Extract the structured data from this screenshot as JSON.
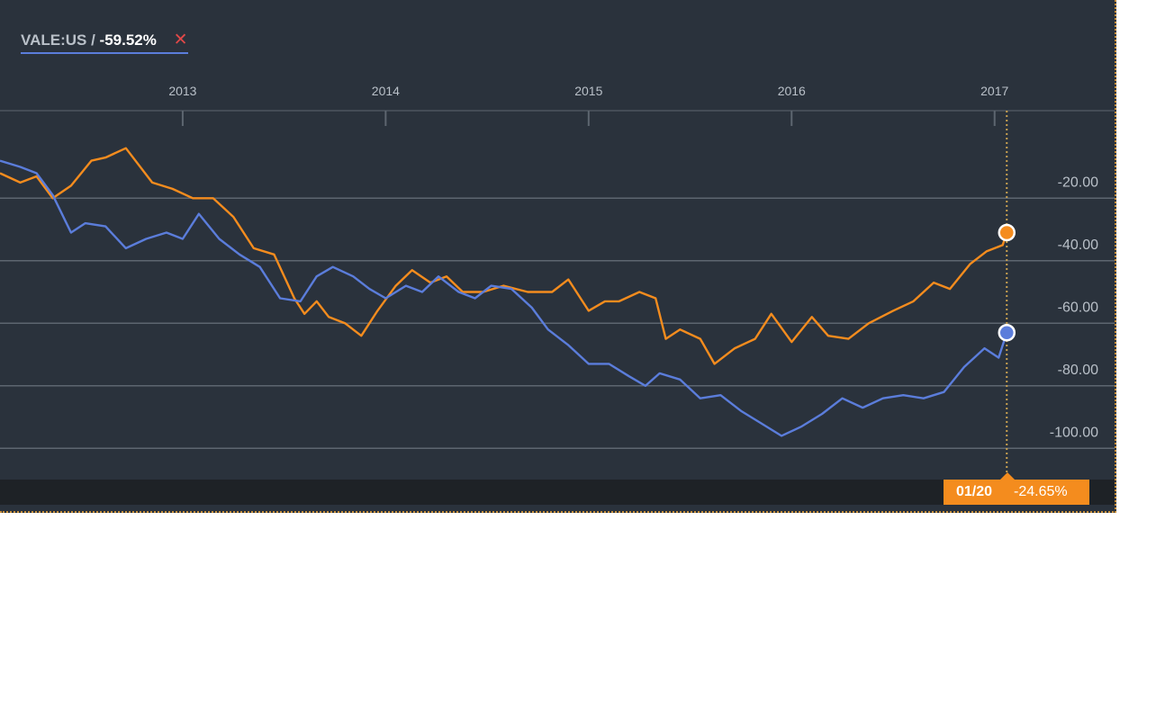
{
  "legend": {
    "ticker": "VALE:US /",
    "value": "-59.52%",
    "close_glyph": "✕"
  },
  "cursor": {
    "date": "01/20",
    "value": "-24.65%"
  },
  "colors": {
    "background": "#2a323c",
    "series_orange": "#f48c1e",
    "series_blue": "#5b7ddb",
    "grid": "#5d6670",
    "text": "#b9c0c8"
  },
  "chart_data": {
    "type": "line",
    "x_tick_labels": [
      "2013",
      "2014",
      "2015",
      "2016",
      "2017"
    ],
    "y_tick_labels": [
      "-20.00",
      "-40.00",
      "-60.00",
      "-80.00",
      "-100.00"
    ],
    "y_ticks": [
      -20,
      -40,
      -60,
      -80,
      -100
    ],
    "ylim": [
      -110,
      8
    ],
    "xlim": [
      2012.1,
      2017.6
    ],
    "grid": true,
    "series": [
      {
        "color": "#f48c1e",
        "x": [
          2012.1,
          2012.2,
          2012.28,
          2012.36,
          2012.45,
          2012.55,
          2012.62,
          2012.72,
          2012.85,
          2012.95,
          2013.05,
          2013.15,
          2013.25,
          2013.35,
          2013.45,
          2013.55,
          2013.6,
          2013.66,
          2013.72,
          2013.8,
          2013.88,
          2013.96,
          2014.05,
          2014.13,
          2014.22,
          2014.3,
          2014.38,
          2014.48,
          2014.58,
          2014.7,
          2014.82,
          2014.9,
          2015.0,
          2015.08,
          2015.15,
          2015.25,
          2015.33,
          2015.38,
          2015.45,
          2015.55,
          2015.62,
          2015.72,
          2015.82,
          2015.9,
          2016.0,
          2016.1,
          2016.18,
          2016.28,
          2016.38,
          2016.5,
          2016.6,
          2016.7,
          2016.78,
          2016.88,
          2016.96,
          2017.04,
          2017.06
        ],
        "y": [
          -12,
          -15,
          -13,
          -20,
          -16,
          -8,
          -7,
          -4,
          -15,
          -17,
          -20,
          -20,
          -26,
          -36,
          -38,
          -52,
          -57,
          -53,
          -58,
          -60,
          -64,
          -56,
          -48,
          -43,
          -47,
          -45,
          -50,
          -50,
          -48,
          -50,
          -50,
          -46,
          -56,
          -53,
          -53,
          -50,
          -52,
          -65,
          -62,
          -65,
          -73,
          -68,
          -65,
          -57,
          -66,
          -58,
          -64,
          -65,
          -60,
          -56,
          -53,
          -47,
          -49,
          -41,
          -37,
          -35,
          -31
        ]
      },
      {
        "color": "#5b7ddb",
        "x": [
          2012.1,
          2012.2,
          2012.28,
          2012.36,
          2012.45,
          2012.52,
          2012.62,
          2012.72,
          2012.82,
          2012.92,
          2013.0,
          2013.08,
          2013.18,
          2013.28,
          2013.38,
          2013.48,
          2013.58,
          2013.66,
          2013.74,
          2013.84,
          2013.92,
          2014.0,
          2014.1,
          2014.18,
          2014.26,
          2014.36,
          2014.44,
          2014.52,
          2014.62,
          2014.72,
          2014.8,
          2014.9,
          2015.0,
          2015.1,
          2015.2,
          2015.28,
          2015.35,
          2015.45,
          2015.55,
          2015.65,
          2015.75,
          2015.85,
          2015.95,
          2016.05,
          2016.15,
          2016.25,
          2016.35,
          2016.45,
          2016.55,
          2016.65,
          2016.75,
          2016.85,
          2016.95,
          2017.02,
          2017.06
        ],
        "y": [
          -8,
          -10,
          -12,
          -19,
          -31,
          -28,
          -29,
          -36,
          -33,
          -31,
          -33,
          -25,
          -33,
          -38,
          -42,
          -52,
          -53,
          -45,
          -42,
          -45,
          -49,
          -52,
          -48,
          -50,
          -45,
          -50,
          -52,
          -48,
          -49,
          -55,
          -62,
          -67,
          -73,
          -73,
          -77,
          -80,
          -76,
          -78,
          -84,
          -83,
          -88,
          -92,
          -96,
          -93,
          -89,
          -84,
          -87,
          -84,
          -83,
          -84,
          -82,
          -74,
          -68,
          -71,
          -63
        ]
      }
    ]
  }
}
